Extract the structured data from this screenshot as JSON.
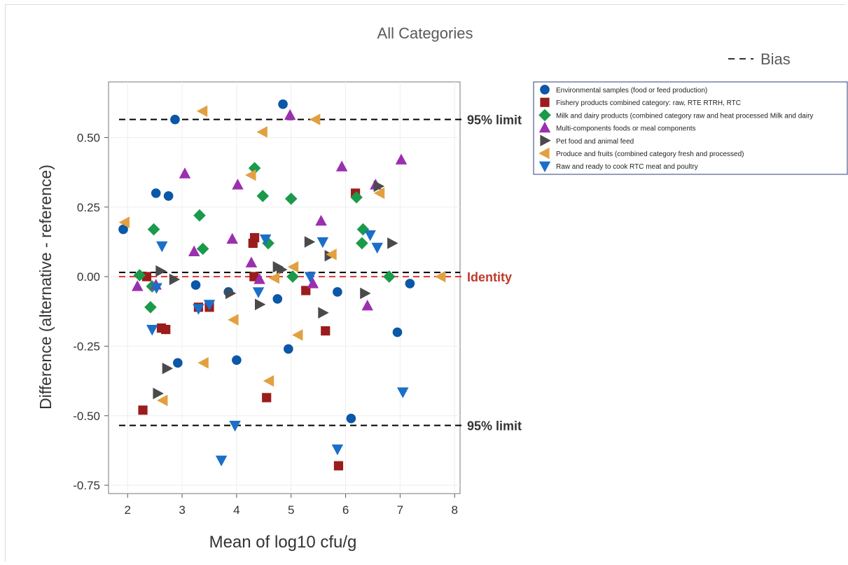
{
  "chart_data": {
    "type": "scatter",
    "title": "All Categories",
    "xlabel": "Mean of log10 cfu/g",
    "ylabel": "Difference (alternative - reference)",
    "xlim": [
      1.65,
      8.1
    ],
    "ylim": [
      -0.78,
      0.7
    ],
    "xticks": [
      2,
      3,
      4,
      5,
      6,
      7,
      8
    ],
    "yticks": [
      0.5,
      0.25,
      0.0,
      -0.25,
      -0.5,
      -0.75
    ],
    "ytick_labels": [
      "0.50",
      "0.25",
      "0.00",
      "-0.25",
      "-0.50",
      "-0.75"
    ],
    "xtick_labels": [
      "2",
      "3",
      "4",
      "5",
      "6",
      "7",
      "8"
    ],
    "grid": true,
    "bias_legend": "Bias",
    "reference_lines": [
      {
        "name": "upper",
        "label": "95% limit",
        "y": 0.565,
        "style": "dashed",
        "color": "#000000"
      },
      {
        "name": "bias",
        "label": "",
        "y": 0.015,
        "style": "dashed",
        "color": "#000000"
      },
      {
        "name": "identity",
        "label": "Identity",
        "y": 0.0,
        "style": "dashed",
        "color": "#e03030"
      },
      {
        "name": "lower",
        "label": "95% limit",
        "y": -0.535,
        "style": "dashed",
        "color": "#000000"
      }
    ],
    "legend_position": "right",
    "series": [
      {
        "name": "Environmental samples (food or feed production)",
        "marker": "circle",
        "color": "#0b57a8",
        "points": [
          [
            1.92,
            0.17
          ],
          [
            2.52,
            0.3
          ],
          [
            2.75,
            0.29
          ],
          [
            2.87,
            0.565
          ],
          [
            2.92,
            -0.31
          ],
          [
            3.25,
            -0.03
          ],
          [
            3.85,
            -0.055
          ],
          [
            4.0,
            -0.3
          ],
          [
            4.75,
            -0.08
          ],
          [
            4.85,
            0.62
          ],
          [
            4.95,
            -0.26
          ],
          [
            5.85,
            -0.055
          ],
          [
            6.1,
            -0.51
          ],
          [
            6.95,
            -0.2
          ],
          [
            7.18,
            -0.025
          ]
        ]
      },
      {
        "name": "Fishery products combined category: raw, RTE RTRH, RTC",
        "marker": "square",
        "color": "#9b1c1c",
        "points": [
          [
            2.28,
            -0.48
          ],
          [
            2.35,
            0.0
          ],
          [
            2.62,
            -0.185
          ],
          [
            2.7,
            -0.19
          ],
          [
            3.3,
            -0.11
          ],
          [
            3.5,
            -0.11
          ],
          [
            4.3,
            0.12
          ],
          [
            4.32,
            0.0
          ],
          [
            4.33,
            0.14
          ],
          [
            4.55,
            -0.435
          ],
          [
            5.27,
            -0.05
          ],
          [
            5.63,
            -0.195
          ],
          [
            5.87,
            -0.68
          ],
          [
            6.18,
            0.3
          ]
        ]
      },
      {
        "name": "Milk and dairy products (combined category raw and heat processed Milk and dairy",
        "marker": "diamond",
        "color": "#1a9a4a",
        "points": [
          [
            2.22,
            0.005
          ],
          [
            2.42,
            -0.11
          ],
          [
            2.45,
            -0.035
          ],
          [
            2.48,
            0.17
          ],
          [
            3.32,
            0.22
          ],
          [
            3.38,
            0.1
          ],
          [
            4.33,
            0.39
          ],
          [
            4.48,
            0.29
          ],
          [
            4.58,
            0.12
          ],
          [
            5.0,
            0.28
          ],
          [
            5.03,
            0.0
          ],
          [
            6.2,
            0.285
          ],
          [
            6.3,
            0.12
          ],
          [
            6.32,
            0.17
          ],
          [
            6.8,
            0.0
          ]
        ]
      },
      {
        "name": "Multi-components foods or meal components",
        "marker": "triangle-up",
        "color": "#9b2fae",
        "points": [
          [
            2.18,
            -0.035
          ],
          [
            2.52,
            -0.03
          ],
          [
            3.05,
            0.37
          ],
          [
            3.22,
            0.09
          ],
          [
            3.92,
            0.135
          ],
          [
            4.02,
            0.33
          ],
          [
            4.27,
            0.05
          ],
          [
            4.42,
            -0.01
          ],
          [
            4.98,
            0.58
          ],
          [
            5.4,
            -0.025
          ],
          [
            5.55,
            0.2
          ],
          [
            5.93,
            0.395
          ],
          [
            6.4,
            -0.105
          ],
          [
            6.55,
            0.33
          ],
          [
            7.02,
            0.42
          ]
        ]
      },
      {
        "name": "Pet food and animal feed",
        "marker": "triangle-right",
        "color": "#4a4a4a",
        "points": [
          [
            2.55,
            -0.42
          ],
          [
            2.6,
            0.02
          ],
          [
            2.72,
            -0.33
          ],
          [
            2.85,
            -0.01
          ],
          [
            3.88,
            -0.06
          ],
          [
            4.42,
            -0.1
          ],
          [
            4.75,
            0.035
          ],
          [
            4.82,
            0.025
          ],
          [
            5.33,
            0.125
          ],
          [
            5.58,
            -0.13
          ],
          [
            5.7,
            0.075
          ],
          [
            6.35,
            -0.06
          ],
          [
            6.6,
            0.325
          ],
          [
            6.85,
            0.12
          ]
        ]
      },
      {
        "name": "Produce and fruits (combined category fresh and processed)",
        "marker": "triangle-left",
        "color": "#e2a040",
        "points": [
          [
            1.95,
            0.195
          ],
          [
            2.65,
            -0.445
          ],
          [
            3.38,
            0.595
          ],
          [
            3.4,
            -0.31
          ],
          [
            3.95,
            -0.155
          ],
          [
            4.27,
            0.365
          ],
          [
            4.48,
            0.52
          ],
          [
            4.6,
            -0.375
          ],
          [
            4.7,
            -0.005
          ],
          [
            5.05,
            0.035
          ],
          [
            5.13,
            -0.21
          ],
          [
            5.45,
            0.565
          ],
          [
            5.75,
            0.08
          ],
          [
            6.63,
            0.3
          ],
          [
            7.75,
            0.0
          ]
        ]
      },
      {
        "name": "Raw and ready to cook RTC meat and poultry",
        "marker": "triangle-down",
        "color": "#1b6fc8",
        "points": [
          [
            2.45,
            -0.19
          ],
          [
            2.53,
            -0.04
          ],
          [
            2.63,
            0.11
          ],
          [
            3.3,
            -0.115
          ],
          [
            3.5,
            -0.1
          ],
          [
            3.72,
            -0.66
          ],
          [
            3.97,
            -0.535
          ],
          [
            4.4,
            -0.055
          ],
          [
            4.53,
            0.135
          ],
          [
            5.35,
            0.0
          ],
          [
            5.58,
            0.125
          ],
          [
            5.85,
            -0.62
          ],
          [
            6.45,
            0.15
          ],
          [
            6.58,
            0.105
          ],
          [
            7.05,
            -0.415
          ]
        ]
      }
    ]
  }
}
